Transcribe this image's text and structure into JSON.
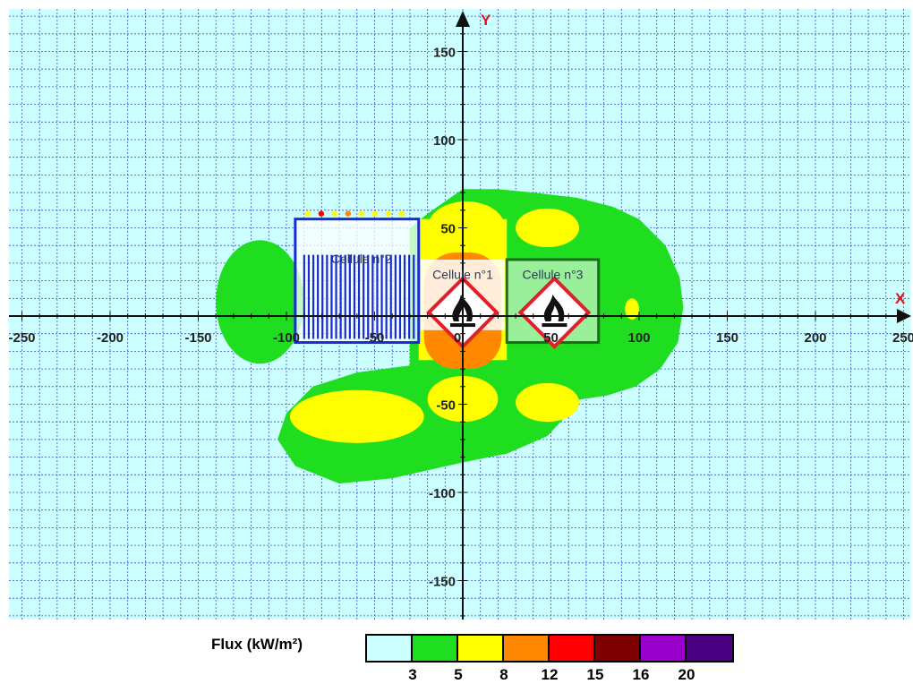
{
  "chart_data": {
    "type": "heatmap",
    "title": "",
    "xlabel": "X",
    "ylabel": "Y",
    "xlim": [
      -250,
      250
    ],
    "ylim": [
      -170,
      170
    ],
    "x_ticks": [
      -250,
      -200,
      -150,
      -100,
      -50,
      0,
      50,
      100,
      150,
      200,
      250
    ],
    "x_tick_labels": [
      "-250",
      "-200",
      "-150",
      "-100",
      "-50",
      "0",
      "50",
      "100",
      "150",
      "200",
      "250"
    ],
    "y_ticks": [
      150,
      100,
      50,
      -50,
      -100,
      -150
    ],
    "y_tick_labels": [
      "150",
      "100",
      "50",
      "-50",
      "-100",
      "-150"
    ],
    "grid": true,
    "background_color": "#ccffff",
    "grid_color": "#3b4fd6",
    "legend": {
      "title": "Flux (kW/m²)",
      "placement": "bottom",
      "colors": [
        "#ccffff",
        "#1fdd1f",
        "#ffff00",
        "#ff8800",
        "#ff0000",
        "#800000",
        "#9900cc",
        "#4b0082"
      ],
      "thresholds": [
        "3",
        "5",
        "8",
        "12",
        "15",
        "16",
        "20"
      ]
    },
    "cells": [
      {
        "name": "Cellule n°2",
        "x": [
          -95,
          -25
        ],
        "y": [
          -15,
          55
        ],
        "color": "#1a2bd6"
      },
      {
        "name": "Cellule n°1",
        "x": [
          -25,
          25
        ],
        "y": [
          -15,
          55
        ],
        "color": "#888888"
      },
      {
        "name": "Cellule n°3",
        "x": [
          25,
          77
        ],
        "y": [
          -15,
          32
        ],
        "color": "#1d6b1d"
      }
    ],
    "zones": [
      {
        "flux_min": 3,
        "color": "#1fdd1f",
        "shape": "blob",
        "points": [
          [
            -30,
            50
          ],
          [
            -20,
            58
          ],
          [
            0,
            72
          ],
          [
            20,
            72
          ],
          [
            40,
            70
          ],
          [
            65,
            67
          ],
          [
            85,
            62
          ],
          [
            100,
            55
          ],
          [
            115,
            40
          ],
          [
            123,
            22
          ],
          [
            125,
            5
          ],
          [
            122,
            -15
          ],
          [
            112,
            -30
          ],
          [
            98,
            -40
          ],
          [
            82,
            -45
          ],
          [
            62,
            -48
          ],
          [
            60,
            -55
          ],
          [
            48,
            -68
          ],
          [
            25,
            -78
          ],
          [
            0,
            -83
          ],
          [
            -40,
            -92
          ],
          [
            -70,
            -95
          ],
          [
            -95,
            -85
          ],
          [
            -105,
            -70
          ],
          [
            -100,
            -55
          ],
          [
            -85,
            -40
          ],
          [
            -60,
            -32
          ],
          [
            -30,
            -28
          ],
          [
            -30,
            10
          ]
        ]
      },
      {
        "flux_min": 3,
        "color": "#1fdd1f",
        "shape": "ellipse",
        "cx": -115,
        "cy": 8,
        "rx": 25,
        "ry": 35
      },
      {
        "flux_min": 5,
        "color": "#ffff00",
        "shape": "ellipse",
        "cx": 2,
        "cy": 50,
        "rx": 22,
        "ry": 15
      },
      {
        "flux_min": 5,
        "color": "#ffff00",
        "shape": "ellipse",
        "cx": 48,
        "cy": 50,
        "rx": 18,
        "ry": 11
      },
      {
        "flux_min": 5,
        "color": "#ffff00",
        "shape": "ellipse",
        "cx": -60,
        "cy": -57,
        "rx": 38,
        "ry": 15
      },
      {
        "flux_min": 5,
        "color": "#ffff00",
        "shape": "ellipse",
        "cx": 0,
        "cy": -47,
        "rx": 20,
        "ry": 13
      },
      {
        "flux_min": 5,
        "color": "#ffff00",
        "shape": "ellipse",
        "cx": 48,
        "cy": -49,
        "rx": 18,
        "ry": 11
      },
      {
        "flux_min": 5,
        "color": "#ffff00",
        "shape": "ellipse",
        "cx": 96,
        "cy": 4,
        "rx": 4,
        "ry": 6
      },
      {
        "flux_min": 5,
        "color": "#ffff00",
        "shape": "rect",
        "x": [
          -25,
          25
        ],
        "y": [
          -25,
          55
        ]
      },
      {
        "flux_min": 8,
        "color": "#ff8800",
        "shape": "rect",
        "x": [
          -22,
          22
        ],
        "y": [
          -30,
          36
        ],
        "rx": 18
      }
    ],
    "markers": [
      {
        "name": "flame-pictogram-1",
        "x": 0,
        "y": 2
      },
      {
        "name": "flame-pictogram-2",
        "x": 52,
        "y": 2
      }
    ]
  }
}
